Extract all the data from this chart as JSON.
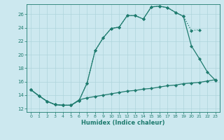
{
  "xlabel": "Humidex (Indice chaleur)",
  "bg_color": "#cce8ef",
  "line_color": "#1e7b6e",
  "grid_color": "#aed4dc",
  "xlim": [
    -0.5,
    23.5
  ],
  "ylim": [
    11.5,
    27.5
  ],
  "xticks": [
    0,
    1,
    2,
    3,
    4,
    5,
    6,
    7,
    8,
    9,
    10,
    11,
    12,
    13,
    14,
    15,
    16,
    17,
    18,
    19,
    20,
    21,
    22,
    23
  ],
  "yticks": [
    12,
    14,
    16,
    18,
    20,
    22,
    24,
    26
  ],
  "line1_x": [
    0,
    1,
    2,
    3,
    4,
    5,
    6,
    7,
    8,
    9,
    10,
    11,
    12,
    13,
    14,
    15,
    16,
    17,
    18,
    19,
    20,
    21
  ],
  "line1_y": [
    14.8,
    13.9,
    13.1,
    12.6,
    12.5,
    12.5,
    13.2,
    15.8,
    20.6,
    22.5,
    23.9,
    24.1,
    25.8,
    25.8,
    25.3,
    27.1,
    27.2,
    27.0,
    26.3,
    25.7,
    23.6,
    23.7
  ],
  "line2_x": [
    0,
    1,
    2,
    3,
    4,
    5,
    6,
    7,
    8,
    9,
    10,
    11,
    12,
    13,
    14,
    15,
    16,
    17,
    18,
    19,
    20,
    21,
    22,
    23
  ],
  "line2_y": [
    14.8,
    13.9,
    13.1,
    12.6,
    12.5,
    12.5,
    13.2,
    15.8,
    20.6,
    22.5,
    23.9,
    24.1,
    25.8,
    25.8,
    25.3,
    27.1,
    27.2,
    27.0,
    26.3,
    25.7,
    21.3,
    19.4,
    17.4,
    16.2
  ],
  "line3_x": [
    0,
    1,
    2,
    3,
    4,
    5,
    6,
    7,
    8,
    9,
    10,
    11,
    12,
    13,
    14,
    15,
    16,
    17,
    18,
    19,
    20,
    21,
    22,
    23
  ],
  "line3_y": [
    14.8,
    13.9,
    13.1,
    12.6,
    12.5,
    12.5,
    13.3,
    13.6,
    13.8,
    14.0,
    14.2,
    14.4,
    14.6,
    14.7,
    14.9,
    15.0,
    15.2,
    15.4,
    15.5,
    15.7,
    15.8,
    15.9,
    16.1,
    16.3
  ]
}
